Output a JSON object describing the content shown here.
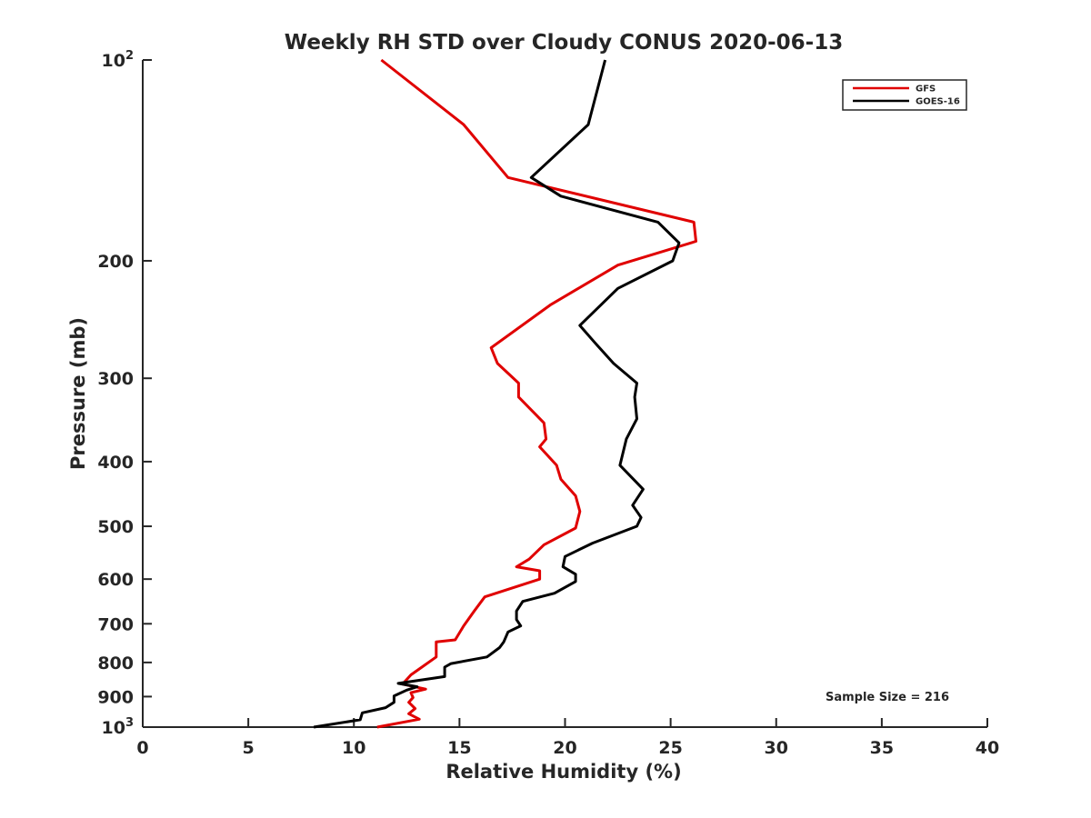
{
  "chart_data": {
    "type": "line",
    "title": "Weekly RH STD over Cloudy CONUS 2020-06-13",
    "xlabel": "Relative Humidity (%)",
    "ylabel": "Pressure (mb)",
    "xlim": [
      0,
      40
    ],
    "ylim": [
      100,
      1000
    ],
    "yscale": "log",
    "y_reversed": true,
    "xticks": [
      0,
      5,
      10,
      15,
      20,
      25,
      30,
      35,
      40
    ],
    "yticks": [
      {
        "value": 100,
        "base": "10",
        "exp": "2"
      },
      {
        "value": 200,
        "label": "200"
      },
      {
        "value": 300,
        "label": "300"
      },
      {
        "value": 400,
        "label": "400"
      },
      {
        "value": 500,
        "label": "500"
      },
      {
        "value": 600,
        "label": "600"
      },
      {
        "value": 700,
        "label": "700"
      },
      {
        "value": 800,
        "label": "800"
      },
      {
        "value": 900,
        "label": "900"
      },
      {
        "value": 1000,
        "base": "10",
        "exp": "3"
      }
    ],
    "grid": false,
    "legend_position": "top-right",
    "annotation": "Sample Size = 216",
    "series": [
      {
        "name": "GFS",
        "color": "#e00000",
        "points": [
          [
            11.3,
            100
          ],
          [
            15.2,
            125
          ],
          [
            17.3,
            150
          ],
          [
            26.1,
            175
          ],
          [
            26.2,
            187
          ],
          [
            22.5,
            203
          ],
          [
            19.3,
            233
          ],
          [
            16.5,
            270
          ],
          [
            16.8,
            285
          ],
          [
            17.8,
            305
          ],
          [
            17.8,
            320
          ],
          [
            19.0,
            350
          ],
          [
            19.1,
            370
          ],
          [
            18.8,
            380
          ],
          [
            19.6,
            405
          ],
          [
            19.8,
            425
          ],
          [
            20.5,
            450
          ],
          [
            20.7,
            475
          ],
          [
            20.5,
            503
          ],
          [
            19.0,
            533
          ],
          [
            18.3,
            560
          ],
          [
            17.7,
            575
          ],
          [
            18.8,
            583
          ],
          [
            18.8,
            600
          ],
          [
            16.2,
            638
          ],
          [
            15.7,
            670
          ],
          [
            15.2,
            705
          ],
          [
            14.8,
            740
          ],
          [
            13.9,
            745
          ],
          [
            13.9,
            785
          ],
          [
            13.1,
            818
          ],
          [
            12.7,
            835
          ],
          [
            12.3,
            862
          ],
          [
            13.4,
            877
          ],
          [
            12.7,
            888
          ],
          [
            12.8,
            903
          ],
          [
            12.6,
            918
          ],
          [
            12.9,
            938
          ],
          [
            12.6,
            955
          ],
          [
            13.1,
            973
          ],
          [
            11.1,
            1000
          ]
        ]
      },
      {
        "name": "GOES-16",
        "color": "#000000",
        "points": [
          [
            21.9,
            100
          ],
          [
            21.1,
            125
          ],
          [
            18.4,
            150
          ],
          [
            19.8,
            160
          ],
          [
            24.4,
            175
          ],
          [
            25.4,
            188
          ],
          [
            25.1,
            200
          ],
          [
            22.5,
            220
          ],
          [
            20.7,
            250
          ],
          [
            21.4,
            265
          ],
          [
            22.3,
            285
          ],
          [
            23.4,
            305
          ],
          [
            23.3,
            320
          ],
          [
            23.4,
            345
          ],
          [
            22.9,
            370
          ],
          [
            22.6,
            405
          ],
          [
            23.7,
            440
          ],
          [
            23.2,
            465
          ],
          [
            23.6,
            485
          ],
          [
            23.4,
            500
          ],
          [
            21.3,
            530
          ],
          [
            20.0,
            555
          ],
          [
            19.9,
            575
          ],
          [
            20.5,
            590
          ],
          [
            20.5,
            605
          ],
          [
            19.5,
            630
          ],
          [
            18.0,
            648
          ],
          [
            17.7,
            670
          ],
          [
            17.7,
            690
          ],
          [
            17.9,
            705
          ],
          [
            17.3,
            720
          ],
          [
            17.1,
            745
          ],
          [
            16.9,
            760
          ],
          [
            16.3,
            785
          ],
          [
            14.6,
            803
          ],
          [
            14.3,
            813
          ],
          [
            14.3,
            840
          ],
          [
            12.1,
            860
          ],
          [
            13.0,
            870
          ],
          [
            12.5,
            880
          ],
          [
            11.9,
            898
          ],
          [
            11.9,
            918
          ],
          [
            11.5,
            935
          ],
          [
            10.4,
            952
          ],
          [
            10.3,
            975
          ],
          [
            8.1,
            1000
          ]
        ]
      }
    ]
  }
}
